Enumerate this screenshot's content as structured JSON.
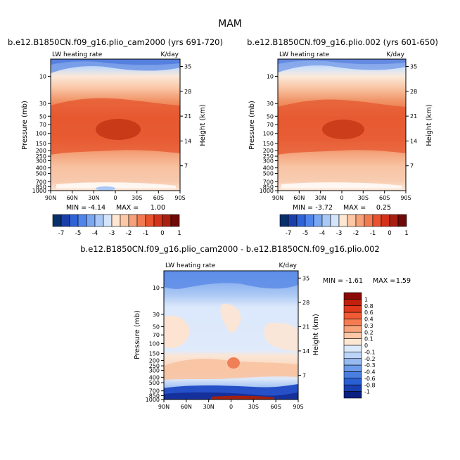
{
  "figure_title": "MAM",
  "chart_data": [
    {
      "type": "heatmap",
      "title": "b.e12.B1850CN.f09_g16.plio_cam2000 (yrs 691-720)",
      "left_label": "LW heating rate",
      "right_label": "K/day",
      "ylabel": "Pressure (mb)",
      "ylabel_right": "Height (km)",
      "x_ticks": [
        "90N",
        "60N",
        "30N",
        "0",
        "30S",
        "60S",
        "90S"
      ],
      "y_ticks": [
        "10",
        "30",
        "50",
        "70",
        "100",
        "150",
        "200",
        "250",
        "300",
        "400",
        "500",
        "700",
        "850",
        "1000"
      ],
      "y_right_ticks": [
        "35",
        "28",
        "21",
        "14",
        "7"
      ],
      "stats": {
        "min_label": "MIN =",
        "min": "-4.14",
        "max_label": "MAX =",
        "max": "1.00"
      },
      "colorbar": {
        "labels": [
          "-7",
          "-5",
          "-4",
          "-3",
          "-2",
          "-1",
          "0",
          "1"
        ],
        "colors": [
          "#08306b",
          "#1a3fa8",
          "#2f63d8",
          "#4f84ea",
          "#7aa7f2",
          "#a9c8f7",
          "#d4e5fb",
          "#fde7d3",
          "#fbc7a5",
          "#f7a079",
          "#f27a50",
          "#e8522d",
          "#d2321a",
          "#a8200f",
          "#6e0a08"
        ]
      }
    },
    {
      "type": "heatmap",
      "title": "b.e12.B1850CN.f09_g16.plio.002 (yrs 601-650)",
      "left_label": "LW heating rate",
      "right_label": "K/day",
      "ylabel": "Pressure (mb)",
      "ylabel_right": "Height (km)",
      "x_ticks": [
        "90N",
        "60N",
        "30N",
        "0",
        "30S",
        "60S",
        "90S"
      ],
      "y_ticks": [
        "10",
        "30",
        "50",
        "70",
        "100",
        "150",
        "200",
        "250",
        "300",
        "400",
        "500",
        "700",
        "850",
        "1000"
      ],
      "y_right_ticks": [
        "35",
        "28",
        "21",
        "14",
        "7"
      ],
      "stats": {
        "min_label": "MIN =",
        "min": "-3.72",
        "max_label": "MAX =",
        "max": "0.25"
      },
      "colorbar": {
        "labels": [
          "-7",
          "-5",
          "-4",
          "-3",
          "-2",
          "-1",
          "0",
          "1"
        ],
        "colors": [
          "#08306b",
          "#1a3fa8",
          "#2f63d8",
          "#4f84ea",
          "#7aa7f2",
          "#a9c8f7",
          "#d4e5fb",
          "#fde7d3",
          "#fbc7a5",
          "#f7a079",
          "#f27a50",
          "#e8522d",
          "#d2321a",
          "#a8200f",
          "#6e0a08"
        ]
      }
    },
    {
      "type": "heatmap",
      "title": "b.e12.B1850CN.f09_g16.plio_cam2000 - b.e12.B1850CN.f09_g16.plio.002",
      "left_label": "LW heating rate",
      "right_label": "K/day",
      "ylabel": "Pressure (mb)",
      "ylabel_right": "Height (km)",
      "x_ticks": [
        "90N",
        "60N",
        "30N",
        "0",
        "30S",
        "60S",
        "90S"
      ],
      "y_ticks": [
        "10",
        "30",
        "50",
        "70",
        "100",
        "150",
        "200",
        "250",
        "300",
        "400",
        "500",
        "700",
        "850",
        "1000"
      ],
      "y_right_ticks": [
        "35",
        "28",
        "21",
        "14",
        "7"
      ],
      "stats": {
        "min_label": "MIN =",
        "min": "-1.61",
        "max_label": "MAX =",
        "max": "1.59"
      },
      "colorbar": {
        "labels": [
          "1",
          "0.8",
          "0.6",
          "0.4",
          "0.3",
          "0.2",
          "0.1",
          "0",
          "-0.1",
          "-0.2",
          "-0.3",
          "-0.4",
          "-0.6",
          "-0.8",
          "-1"
        ],
        "colors": [
          "#8b0a05",
          "#c1200d",
          "#e03a1e",
          "#f05a34",
          "#f57c52",
          "#f9a37a",
          "#fcc8a6",
          "#fde6d2",
          "#dce9fb",
          "#bcd4f7",
          "#97baf1",
          "#6e9cea",
          "#4a7fe2",
          "#2b5fd4",
          "#1a3fb0",
          "#0a1f80"
        ]
      }
    }
  ]
}
